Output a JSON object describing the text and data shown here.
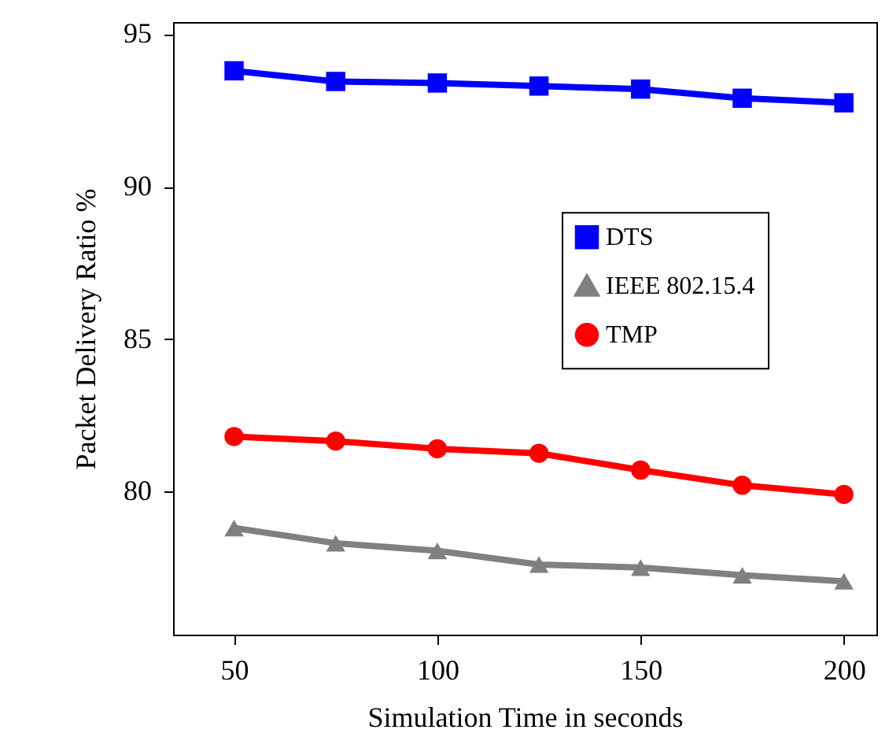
{
  "chart_data": {
    "type": "line",
    "xlabel": "Simulation Time in seconds",
    "ylabel": "Packet Delivery Ratio %",
    "x": [
      50,
      75,
      100,
      125,
      150,
      175,
      200
    ],
    "series": [
      {
        "name": "DTS",
        "color": "#0000ff",
        "marker": "square",
        "values": [
          93.8,
          93.45,
          93.4,
          93.3,
          93.2,
          92.9,
          92.75
        ]
      },
      {
        "name": "IEEE 802.15.4",
        "color": "#808080",
        "marker": "triangle",
        "values": [
          78.8,
          78.3,
          78.05,
          77.6,
          77.5,
          77.25,
          77.05
        ]
      },
      {
        "name": "TMP",
        "color": "#ff0000",
        "marker": "circle",
        "values": [
          81.8,
          81.65,
          81.4,
          81.25,
          80.7,
          80.2,
          79.9
        ]
      }
    ],
    "xlim": [
      35,
      208
    ],
    "xticks": [
      50,
      100,
      150,
      200
    ],
    "ylim": [
      75.3,
      95.4
    ],
    "yticks": [
      80,
      85,
      90,
      95
    ],
    "grid": false,
    "legend": "right",
    "line_style": "solid"
  }
}
